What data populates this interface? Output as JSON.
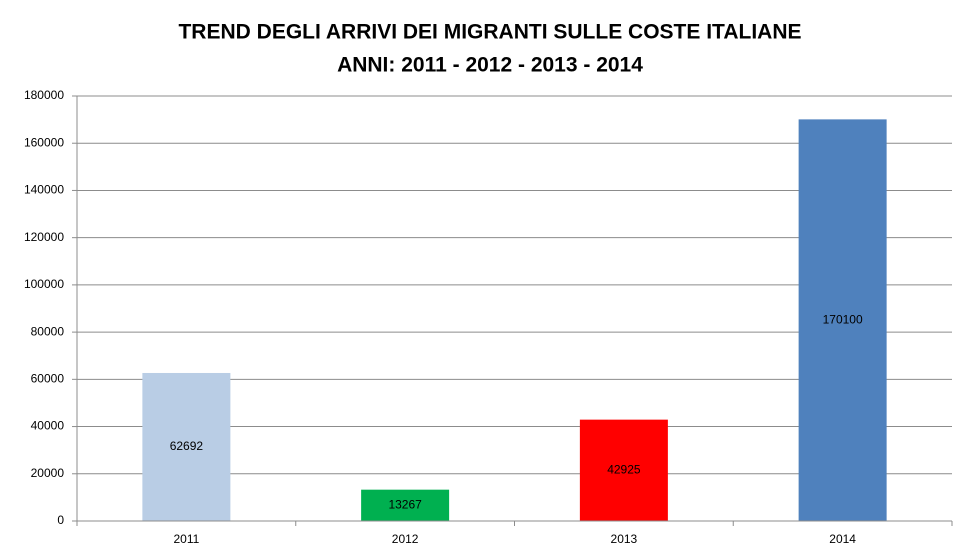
{
  "chart_data": {
    "type": "bar",
    "title": "TREND DEGLI ARRIVI DEI MIGRANTI SULLE COSTE ITALIANE",
    "subtitle": "ANNI: 2011 - 2012 - 2013 - 2014",
    "categories": [
      "2011",
      "2012",
      "2013",
      "2014"
    ],
    "values": [
      62692,
      13267,
      42925,
      170100
    ],
    "colors": [
      "#b9cde5",
      "#00b050",
      "#ff0000",
      "#4f81bd"
    ],
    "ylim": [
      0,
      180000
    ],
    "yticks": [
      0,
      20000,
      40000,
      60000,
      80000,
      100000,
      120000,
      140000,
      160000,
      180000
    ],
    "grid": true
  }
}
